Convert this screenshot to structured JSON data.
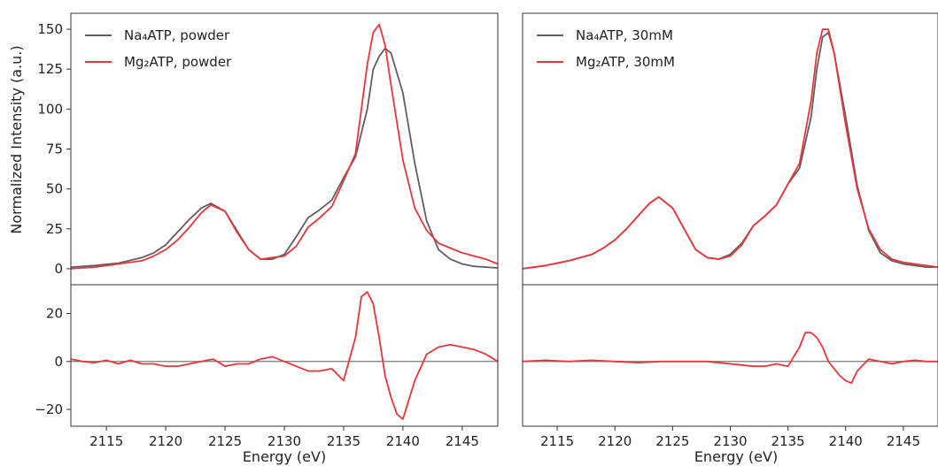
{
  "chart_data": [
    {
      "type": "line",
      "panel": "top-left",
      "ylabel": "Normalized Intensity (a.u.)",
      "xlim": [
        2112,
        2148
      ],
      "ylim": [
        -10,
        160
      ],
      "yticks": [
        0,
        25,
        50,
        75,
        100,
        125,
        150
      ],
      "legend_position": "top-left",
      "series": [
        {
          "name": "Na₄ATP, powder",
          "color": "#5f5f5f",
          "x": [
            2112,
            2114,
            2116,
            2118,
            2119,
            2120,
            2121,
            2122,
            2123,
            2123.8,
            2125,
            2126,
            2127,
            2128,
            2129,
            2130,
            2131,
            2132,
            2133,
            2134,
            2135,
            2136,
            2137,
            2137.5,
            2138,
            2138.5,
            2139,
            2140,
            2141,
            2142,
            2143,
            2144,
            2145,
            2146,
            2147,
            2148
          ],
          "y": [
            1,
            2,
            3.5,
            7,
            10,
            15,
            23,
            31,
            38,
            41,
            36,
            24,
            12,
            6,
            6,
            9,
            20,
            32,
            37,
            43,
            57,
            70,
            100,
            125,
            133,
            138,
            135,
            110,
            66,
            30,
            12,
            6,
            3,
            1.5,
            1,
            0.5
          ]
        },
        {
          "name": "Mg₂ATP, powder",
          "color": "#e8363c",
          "x": [
            2112,
            2114,
            2116,
            2118,
            2119,
            2120,
            2121,
            2122,
            2123,
            2123.8,
            2125,
            2126,
            2127,
            2128,
            2129,
            2130,
            2131,
            2132,
            2133,
            2134,
            2135,
            2136,
            2137,
            2137.5,
            2138,
            2138.5,
            2139,
            2140,
            2141,
            2142,
            2143,
            2144,
            2145,
            2146,
            2147,
            2148
          ],
          "y": [
            0,
            1,
            3,
            5,
            8,
            12,
            18,
            26,
            35,
            40,
            36,
            23,
            12,
            6,
            7,
            8,
            14,
            26,
            32,
            39,
            55,
            72,
            128,
            148,
            153,
            140,
            115,
            68,
            38,
            24,
            16,
            13,
            10,
            8,
            6,
            3
          ]
        }
      ]
    },
    {
      "type": "line",
      "panel": "top-right",
      "xlim": [
        2112,
        2148
      ],
      "ylim": [
        -10,
        160
      ],
      "legend_position": "top-left",
      "series": [
        {
          "name": "Na₄ATP, 30mM",
          "color": "#5f5f5f",
          "x": [
            2112,
            2114,
            2116,
            2118,
            2119,
            2120,
            2121,
            2122,
            2123,
            2123.8,
            2125,
            2126,
            2127,
            2128,
            2129,
            2130,
            2131,
            2132,
            2133,
            2134,
            2135,
            2136,
            2137,
            2137.5,
            2138,
            2138.5,
            2139,
            2140,
            2141,
            2142,
            2143,
            2144,
            2145,
            2146,
            2147,
            2148
          ],
          "y": [
            0,
            2,
            5,
            9,
            13,
            18,
            25,
            33,
            41,
            45,
            38,
            25,
            12,
            7,
            6,
            9,
            16,
            27,
            33,
            40,
            53,
            63,
            95,
            125,
            145,
            148,
            135,
            95,
            52,
            24,
            10,
            5,
            3,
            2,
            1,
            1
          ]
        },
        {
          "name": "Mg₂ATP, 30mM",
          "color": "#e8363c",
          "x": [
            2112,
            2114,
            2116,
            2118,
            2119,
            2120,
            2121,
            2122,
            2123,
            2123.8,
            2125,
            2126,
            2127,
            2128,
            2129,
            2130,
            2131,
            2132,
            2133,
            2134,
            2135,
            2136,
            2137,
            2137.5,
            2138,
            2138.5,
            2139,
            2140,
            2141,
            2142,
            2143,
            2144,
            2145,
            2146,
            2147,
            2148
          ],
          "y": [
            0,
            2,
            5,
            9,
            13,
            18,
            25,
            33,
            41,
            45,
            38,
            25,
            12,
            7,
            6,
            8,
            15,
            27,
            33,
            40,
            53,
            66,
            105,
            135,
            150,
            150,
            135,
            90,
            50,
            25,
            12,
            6,
            4,
            3,
            2,
            1
          ]
        }
      ]
    },
    {
      "type": "line",
      "panel": "bottom-left",
      "xlabel": "Energy (eV)",
      "xlim": [
        2112,
        2148
      ],
      "ylim": [
        -27,
        32
      ],
      "yticks": [
        -20,
        0,
        20
      ],
      "xticks": [
        2115,
        2120,
        2125,
        2130,
        2135,
        2140,
        2145
      ],
      "reference_line": 0,
      "series": [
        {
          "name": "",
          "color": "#e8363c",
          "x": [
            2112,
            2113,
            2114,
            2115,
            2116,
            2117,
            2118,
            2119,
            2120,
            2121,
            2122,
            2123,
            2124,
            2125,
            2126,
            2127,
            2128,
            2129,
            2130,
            2131,
            2132,
            2133,
            2134,
            2135,
            2136,
            2136.5,
            2137,
            2137.5,
            2138,
            2138.5,
            2139,
            2139.5,
            2140,
            2140.5,
            2141,
            2142,
            2143,
            2144,
            2145,
            2146,
            2147,
            2148
          ],
          "y": [
            1,
            0,
            -0.5,
            0.5,
            -1,
            0.5,
            -1,
            -1,
            -2,
            -2,
            -1,
            0,
            1,
            -2,
            -1,
            -1,
            1,
            2,
            0,
            -2,
            -4,
            -4,
            -3,
            -8,
            10,
            27,
            29,
            24,
            10,
            -6,
            -15,
            -22,
            -24,
            -16,
            -8,
            3,
            6,
            7,
            6,
            5,
            3,
            0
          ]
        }
      ]
    },
    {
      "type": "line",
      "panel": "bottom-right",
      "xlabel": "Energy (eV)",
      "xlim": [
        2112,
        2148
      ],
      "ylim": [
        -27,
        32
      ],
      "xticks": [
        2115,
        2120,
        2125,
        2130,
        2135,
        2140,
        2145
      ],
      "reference_line": 0,
      "series": [
        {
          "name": "",
          "color": "#e8363c",
          "x": [
            2112,
            2114,
            2116,
            2118,
            2120,
            2122,
            2124,
            2126,
            2128,
            2130,
            2131,
            2132,
            2133,
            2134,
            2135,
            2136,
            2136.5,
            2137,
            2137.5,
            2138,
            2138.5,
            2139,
            2139.5,
            2140,
            2140.5,
            2141,
            2142,
            2143,
            2144,
            2145,
            2146,
            2147,
            2148
          ],
          "y": [
            0,
            0.5,
            0,
            0.5,
            0,
            -0.5,
            0,
            0,
            0,
            -1,
            -1.5,
            -2,
            -2,
            -1,
            -2,
            6,
            12,
            12,
            10,
            6,
            0,
            -3,
            -6,
            -8,
            -9,
            -4,
            1,
            0,
            -1,
            0,
            0.5,
            0,
            0
          ]
        }
      ]
    }
  ]
}
